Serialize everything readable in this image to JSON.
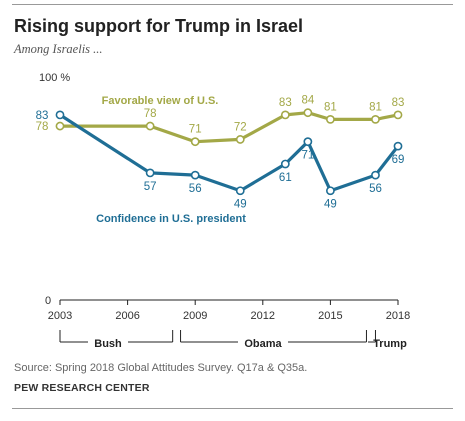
{
  "header": {
    "title": "Rising support for Trump in Israel",
    "subtitle": "Among Israelis ..."
  },
  "footer": {
    "source": "Source: Spring 2018 Global Attitudes Survey. Q17a & Q35a.",
    "organization": "PEW RESEARCH CENTER"
  },
  "colors": {
    "favorable": "#a3a847",
    "confidence": "#1f6e95",
    "axis": "#333333",
    "text": "#333333"
  },
  "chart_data": {
    "type": "line",
    "ylim": [
      0,
      100
    ],
    "xlim": [
      2003,
      2018
    ],
    "ytick_labels": [
      "0",
      "100 %"
    ],
    "ytick_values": [
      0,
      100
    ],
    "xtick_labels": [
      "2003",
      "2006",
      "2009",
      "2012",
      "2015",
      "2018"
    ],
    "xtick_values": [
      2003,
      2006,
      2009,
      2012,
      2015,
      2018
    ],
    "grid": false,
    "series": [
      {
        "name": "Favorable view of U.S.",
        "x": [
          2003,
          2007,
          2009,
          2011,
          2013,
          2014,
          2015,
          2017,
          2018
        ],
        "values": [
          78,
          78,
          71,
          72,
          83,
          84,
          81,
          81,
          83
        ],
        "labels": [
          "78",
          "78",
          "71",
          "72",
          "83",
          "84",
          "81",
          "81",
          "83"
        ]
      },
      {
        "name": "Confidence in U.S. president",
        "x": [
          2003,
          2007,
          2009,
          2011,
          2013,
          2014,
          2015,
          2017,
          2018
        ],
        "values": [
          83,
          57,
          56,
          49,
          61,
          71,
          49,
          56,
          69
        ],
        "labels": [
          "83",
          "57",
          "56",
          "49",
          "61",
          "71",
          "49",
          "56",
          "69"
        ]
      }
    ],
    "presidents": [
      {
        "name": "Bush",
        "start": 2003,
        "end": 2008
      },
      {
        "name": "Obama",
        "start": 2009,
        "end": 2016
      },
      {
        "name": "Trump",
        "start": 2017,
        "end": 2018
      }
    ]
  }
}
